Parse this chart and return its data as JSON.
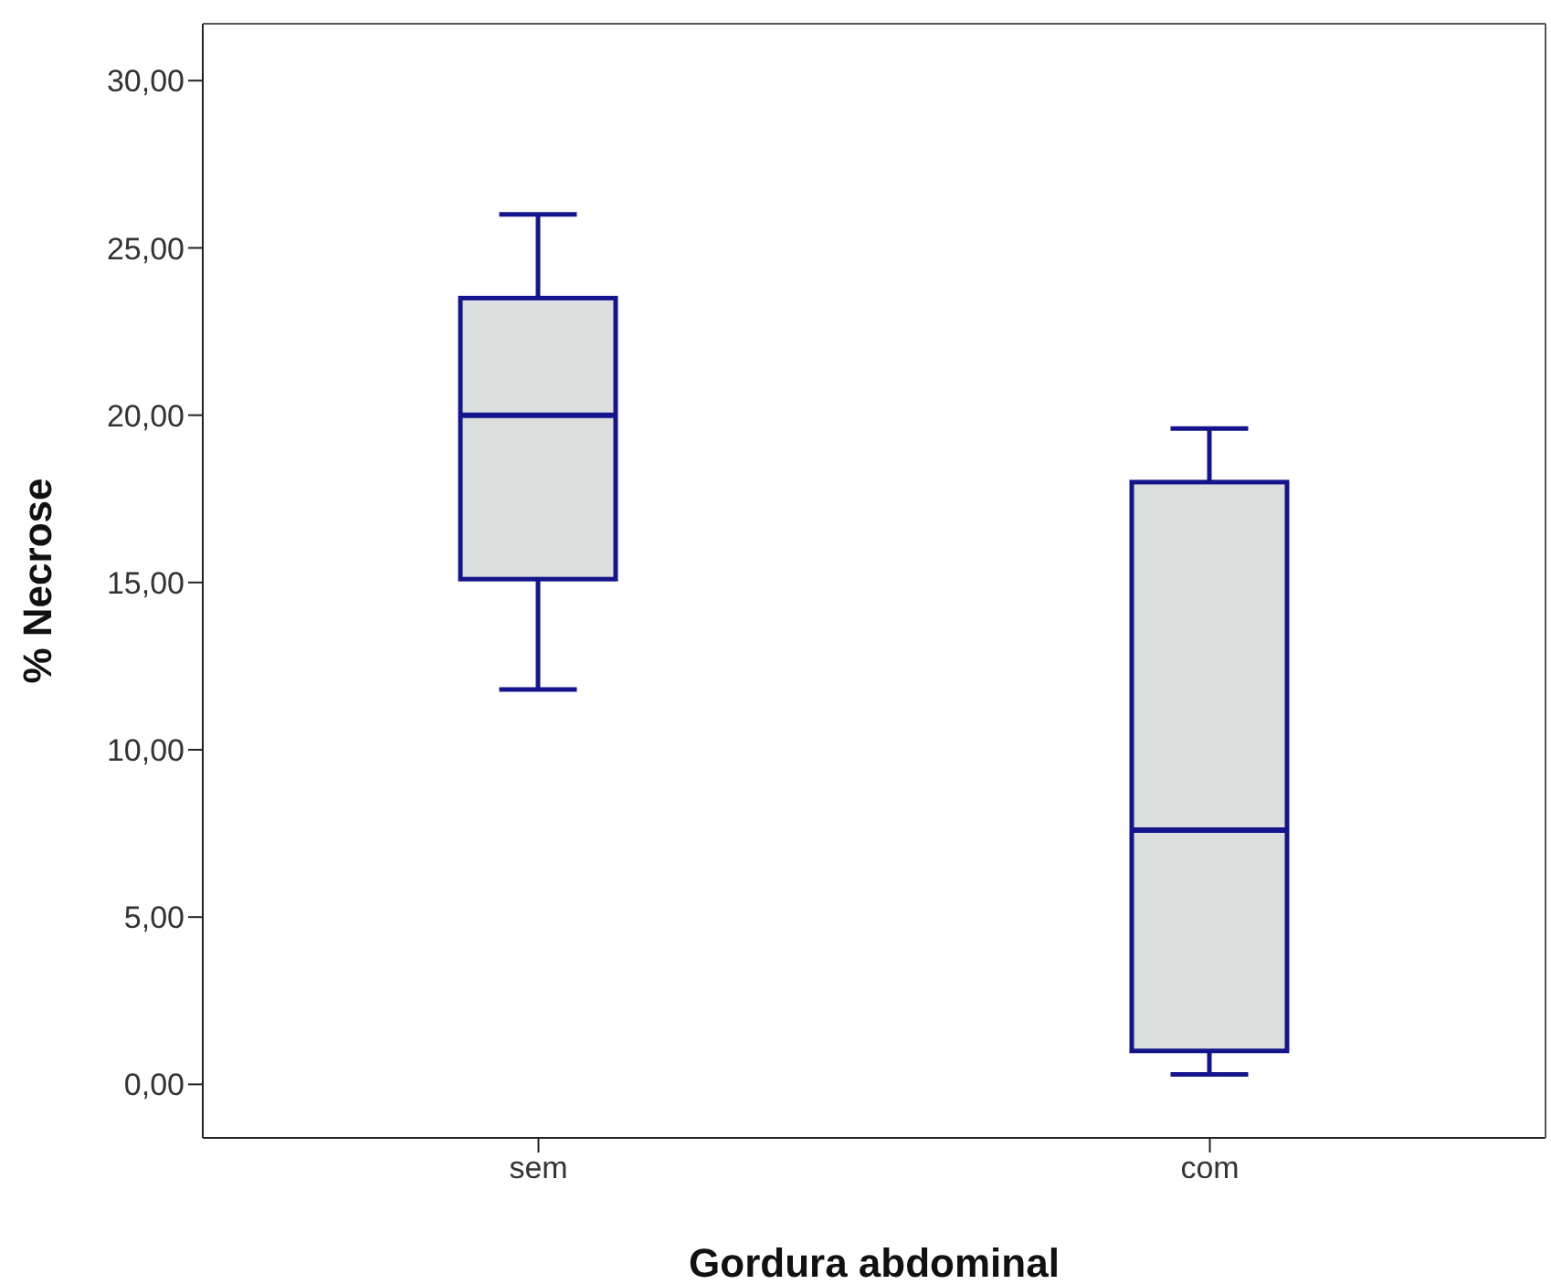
{
  "chart_data": {
    "type": "box",
    "xlabel": "Gordura abdominal",
    "ylabel": "% Necrose",
    "categories": [
      "sem",
      "com"
    ],
    "series": [
      {
        "color": "#14148c",
        "boxes": [
          {
            "low": 11.8,
            "q1": 15.1,
            "median": 20.0,
            "q3": 23.5,
            "high": 26.0
          },
          {
            "low": 0.3,
            "q1": 1.0,
            "median": 7.6,
            "q3": 18.0,
            "high": 19.6
          }
        ]
      }
    ],
    "ylim": [
      -1.6,
      31.7
    ],
    "yticks": [
      {
        "value": 0,
        "label": "0,00"
      },
      {
        "value": 5,
        "label": "5,00"
      },
      {
        "value": 10,
        "label": "10,00"
      },
      {
        "value": 15,
        "label": "15,00"
      },
      {
        "value": 20,
        "label": "20,00"
      },
      {
        "value": 25,
        "label": "25,00"
      },
      {
        "value": 30,
        "label": "30,00"
      }
    ],
    "grid": false
  }
}
